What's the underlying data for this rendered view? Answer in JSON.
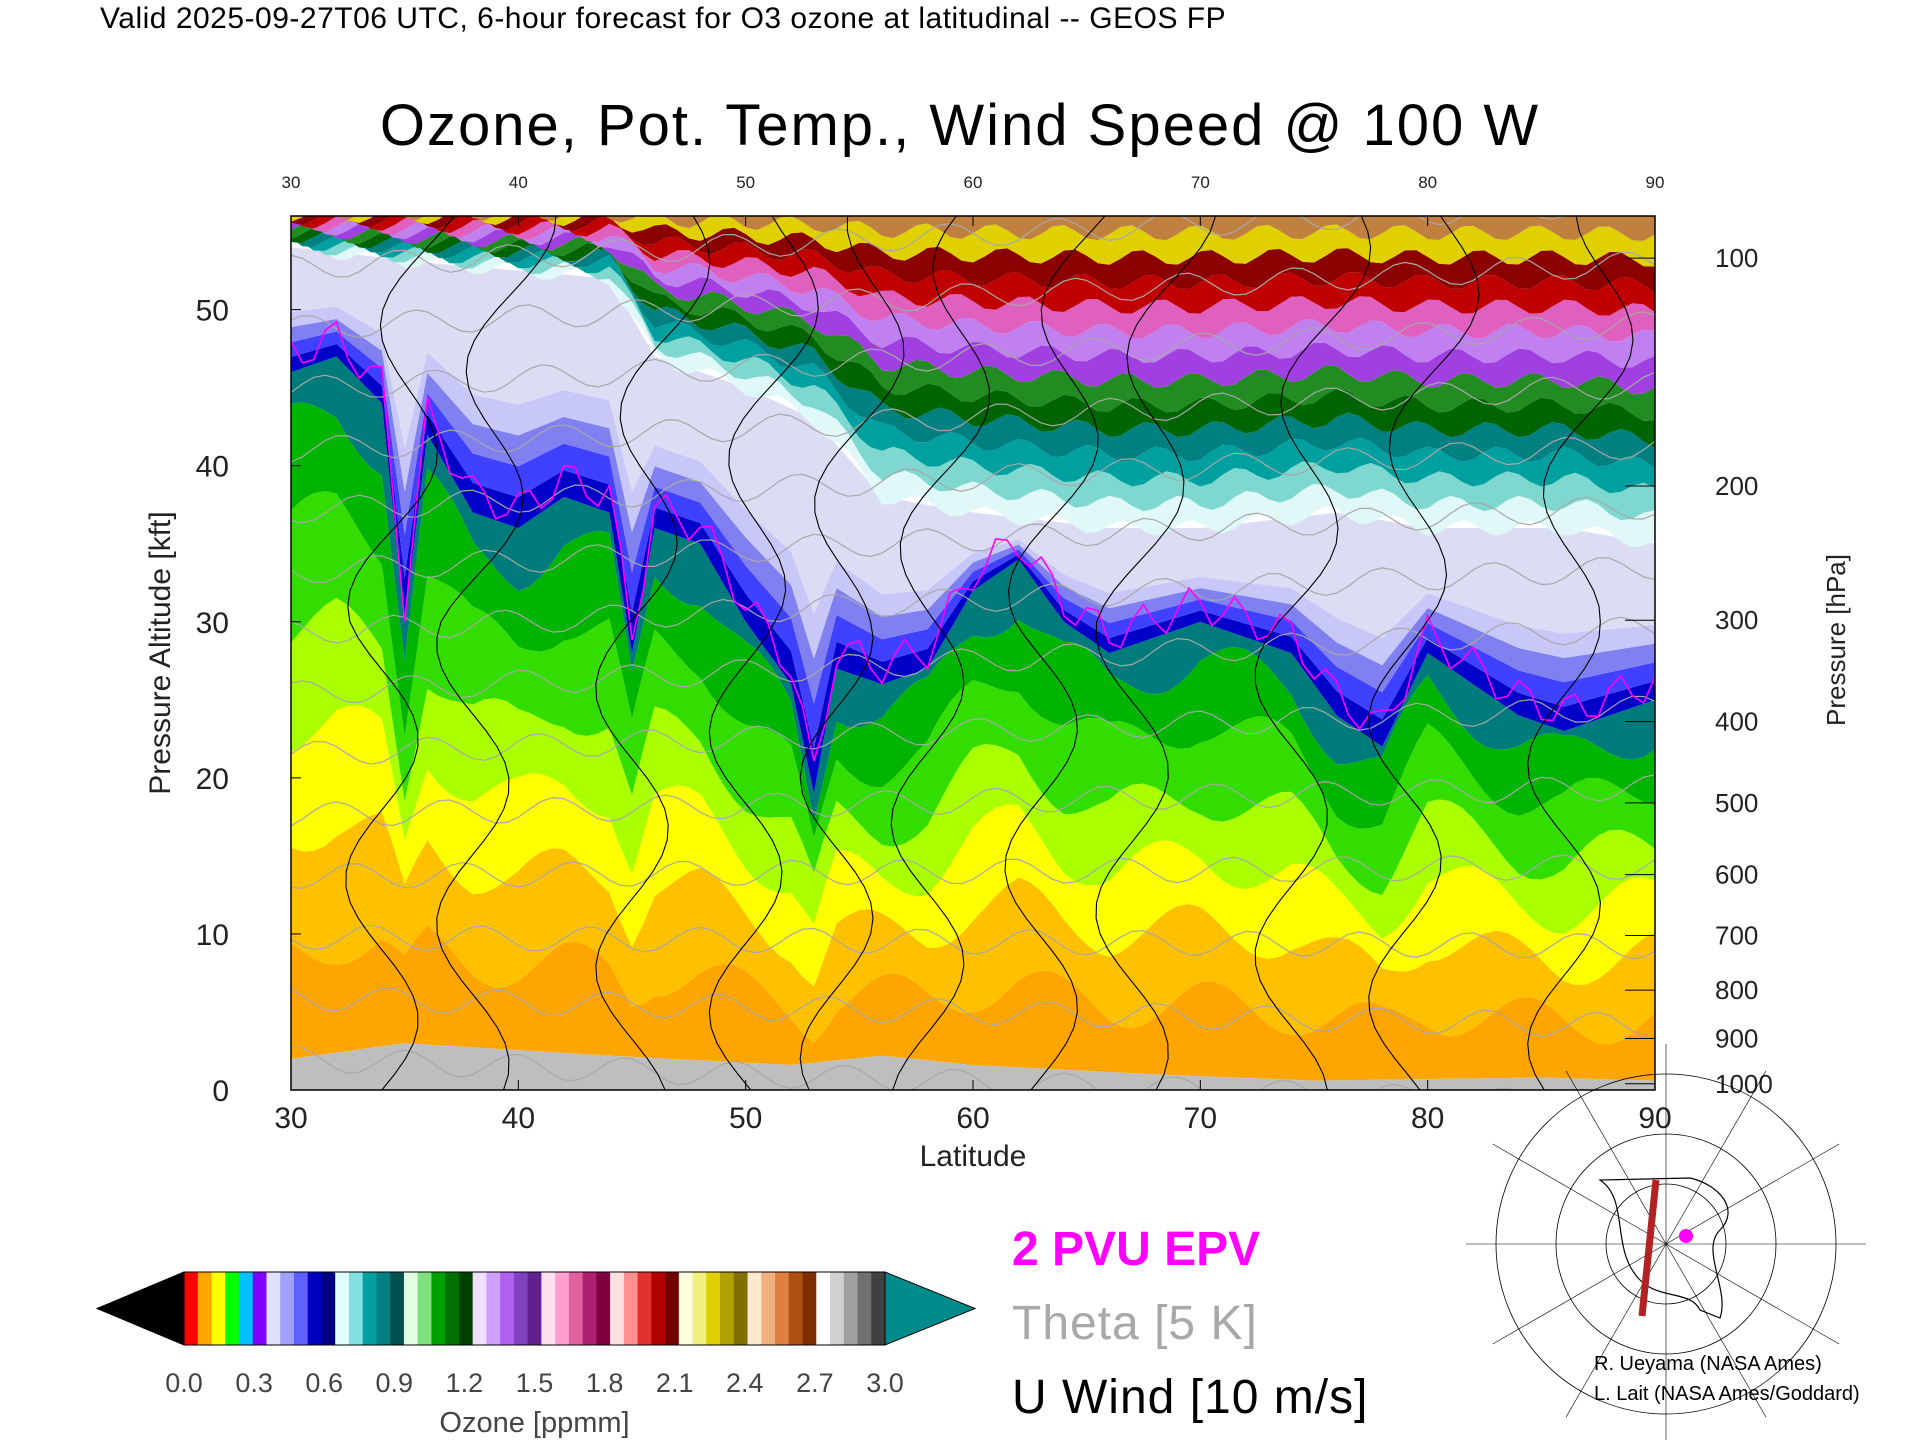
{
  "header": {
    "valid_text": "Valid 2025-09-27T06 UTC, 6-hour forecast for O3 ozone at latitudinal -- GEOS FP",
    "title": "Ozone, Pot. Temp., Wind Speed @ 100 W"
  },
  "legend": {
    "epv_label": "2 PVU EPV",
    "theta_label": "Theta [5 K]",
    "wind_label": "U Wind [10 m/s]",
    "epv_color": "#ff00ff",
    "theta_color": "#a8a8a8",
    "wind_color": "#000000"
  },
  "credits": {
    "line1": "R. Ueyama (NASA Ames)",
    "line2": "L. Lait (NASA Ames/Goddard)"
  },
  "colorbar": {
    "label": "Ozone [ppmm]",
    "ticks": [
      "0.0",
      "0.3",
      "0.6",
      "0.9",
      "1.2",
      "1.5",
      "1.8",
      "2.1",
      "2.4",
      "2.7",
      "3.0"
    ],
    "under_color": "#000000",
    "over_color": "#008b8b"
  },
  "inset_map": {
    "description_icon": "globe-map-icon",
    "marker_color": "#ff00ff",
    "section_line_color": "#b22222"
  },
  "chart_data": {
    "type": "heatmap",
    "title": "Ozone, Pot. Temp., Wind Speed @ 100 W",
    "xlabel": "Latitude",
    "ylabel": "Pressure Altitude [kft]",
    "y2label": "Pressure [hPa]",
    "xlim": [
      30,
      90
    ],
    "ylim": [
      0,
      56
    ],
    "x_ticks": [
      30,
      40,
      50,
      60,
      70,
      80,
      90
    ],
    "top_x_ticks": [
      30,
      40,
      50,
      60,
      70,
      80,
      90
    ],
    "y_ticks": [
      0,
      10,
      20,
      30,
      40,
      50
    ],
    "pressure_ticks": [
      {
        "hPa": 1000,
        "kft": 0.4
      },
      {
        "hPa": 900,
        "kft": 3.3
      },
      {
        "hPa": 800,
        "kft": 6.4
      },
      {
        "hPa": 700,
        "kft": 9.9
      },
      {
        "hPa": 600,
        "kft": 13.8
      },
      {
        "hPa": 500,
        "kft": 18.4
      },
      {
        "hPa": 400,
        "kft": 23.6
      },
      {
        "hPa": 300,
        "kft": 30.1
      },
      {
        "hPa": 200,
        "kft": 38.7
      },
      {
        "hPa": 100,
        "kft": 53.3
      }
    ],
    "ozone_levels_ppmm": [
      0.0,
      0.3,
      0.6,
      0.9,
      1.2,
      1.5,
      1.8,
      2.1,
      2.4,
      2.7,
      3.0
    ],
    "ozone_colors": [
      "#ffa500",
      "#ffc000",
      "#ffff00",
      "#aaff00",
      "#33dd00",
      "#00b400",
      "#007b7b",
      "#0000c8",
      "#4040ff",
      "#8080f0",
      "#c8c8f8",
      "#e0f8f8",
      "#7fd8d0",
      "#00a0a0",
      "#008080",
      "#006400",
      "#228b22",
      "#a040e0",
      "#c080f0",
      "#e060c0",
      "#c00000",
      "#8b0000",
      "#e0d000",
      "#c08040"
    ],
    "tropopause_kft": [
      {
        "lat": 30,
        "kft": 46
      },
      {
        "lat": 32,
        "kft": 47
      },
      {
        "lat": 34,
        "kft": 44
      },
      {
        "lat": 35,
        "kft": 30
      },
      {
        "lat": 36,
        "kft": 42
      },
      {
        "lat": 38,
        "kft": 37
      },
      {
        "lat": 40,
        "kft": 36
      },
      {
        "lat": 42,
        "kft": 38
      },
      {
        "lat": 44,
        "kft": 37
      },
      {
        "lat": 45,
        "kft": 28
      },
      {
        "lat": 46,
        "kft": 36
      },
      {
        "lat": 48,
        "kft": 35
      },
      {
        "lat": 50,
        "kft": 30
      },
      {
        "lat": 52,
        "kft": 26
      },
      {
        "lat": 53,
        "kft": 19
      },
      {
        "lat": 54,
        "kft": 27
      },
      {
        "lat": 56,
        "kft": 26
      },
      {
        "lat": 58,
        "kft": 27
      },
      {
        "lat": 60,
        "kft": 32
      },
      {
        "lat": 62,
        "kft": 34
      },
      {
        "lat": 64,
        "kft": 30
      },
      {
        "lat": 66,
        "kft": 28
      },
      {
        "lat": 68,
        "kft": 29
      },
      {
        "lat": 70,
        "kft": 30
      },
      {
        "lat": 72,
        "kft": 29
      },
      {
        "lat": 74,
        "kft": 28
      },
      {
        "lat": 76,
        "kft": 24
      },
      {
        "lat": 78,
        "kft": 22
      },
      {
        "lat": 80,
        "kft": 28
      },
      {
        "lat": 82,
        "kft": 26
      },
      {
        "lat": 84,
        "kft": 24
      },
      {
        "lat": 86,
        "kft": 23
      },
      {
        "lat": 88,
        "kft": 24
      },
      {
        "lat": 90,
        "kft": 25
      }
    ],
    "upper_boundary_kft": [
      {
        "lat": 30,
        "kft": 54
      },
      {
        "lat": 36,
        "kft": 53
      },
      {
        "lat": 44,
        "kft": 52
      },
      {
        "lat": 46,
        "kft": 47
      },
      {
        "lat": 50,
        "kft": 45
      },
      {
        "lat": 53,
        "kft": 43
      },
      {
        "lat": 56,
        "kft": 38
      },
      {
        "lat": 60,
        "kft": 37
      },
      {
        "lat": 66,
        "kft": 36
      },
      {
        "lat": 70,
        "kft": 36
      },
      {
        "lat": 76,
        "kft": 37
      },
      {
        "lat": 80,
        "kft": 36
      },
      {
        "lat": 86,
        "kft": 36
      },
      {
        "lat": 90,
        "kft": 35
      }
    ],
    "theta_levels_K": [
      290,
      300,
      310,
      320,
      330,
      340,
      350,
      360,
      370,
      380,
      390,
      400,
      410,
      420
    ],
    "u_wind_contours_ms": [
      0,
      10,
      20,
      30
    ],
    "surface_kft": [
      {
        "lat": 30,
        "kft": 2.0
      },
      {
        "lat": 35,
        "kft": 3.0
      },
      {
        "lat": 44,
        "kft": 2.2
      },
      {
        "lat": 52,
        "kft": 1.6
      },
      {
        "lat": 56,
        "kft": 2.2
      },
      {
        "lat": 60,
        "kft": 1.6
      },
      {
        "lat": 68,
        "kft": 1.0
      },
      {
        "lat": 75,
        "kft": 0.6
      },
      {
        "lat": 85,
        "kft": 0.8
      },
      {
        "lat": 90,
        "kft": 0.6
      }
    ]
  }
}
